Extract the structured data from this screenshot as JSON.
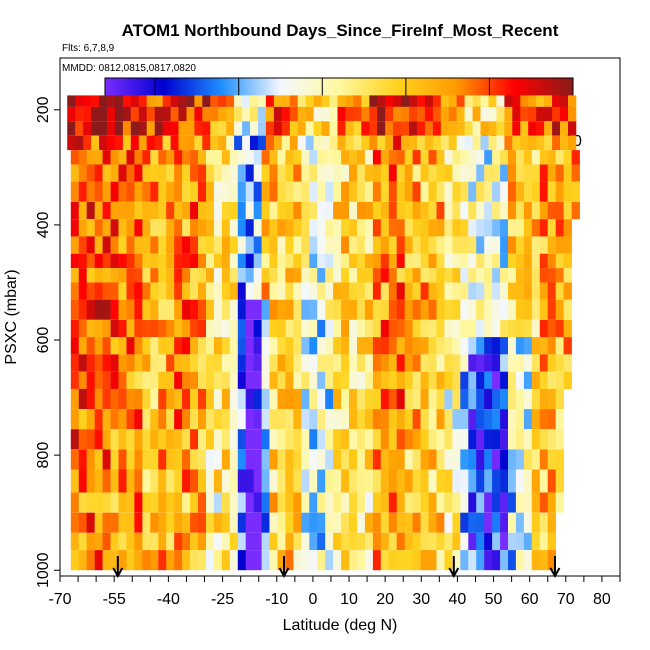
{
  "chart_data": {
    "type": "heatmap",
    "title": "ATOM1 Northbound Days_Since_FireInf_Most_Recent",
    "subtitle_flights": "Flts: 6,7,8,9",
    "subtitle_dates": "MMDD: 0812,0815,0817,0820",
    "xlabel": "Latitude (deg N)",
    "ylabel": "PSXC (mbar)",
    "xlim": [
      -70,
      85
    ],
    "ylim": [
      1010,
      110
    ],
    "x_ticks": [
      -70,
      -55,
      -40,
      -25,
      -10,
      0,
      10,
      20,
      30,
      40,
      50,
      60,
      70,
      80
    ],
    "y_ticks": [
      200,
      400,
      600,
      800,
      1000
    ],
    "colorbar": {
      "range": [
        2,
        30
      ],
      "ticks": [
        5,
        10,
        15,
        20,
        25,
        30
      ],
      "colors": [
        "#7a2cff",
        "#0000d0",
        "#1f8fff",
        "#f4f8ff",
        "#fff8a0",
        "#ffd21e",
        "#ff9a00",
        "#ff0000",
        "#8b1a1a"
      ]
    },
    "arrow_latitudes": [
      -54,
      -8,
      39,
      67
    ],
    "level_boundaries": [
      175,
      195,
      220,
      245,
      270,
      295,
      325,
      360,
      390,
      420,
      450,
      475,
      500,
      530,
      565,
      595,
      625,
      655,
      685,
      720,
      755,
      790,
      825,
      865,
      900,
      935,
      965,
      1000
    ],
    "level_profiles": [
      {
        "lon": -68,
        "loff": 13,
        "sval": [
          18,
          20
        ]
      },
      {
        "lon": -68,
        "loff": 13,
        "sval": [
          20,
          23
        ]
      },
      {
        "lon": -68,
        "loff": 13,
        "sval": [
          20,
          22
        ]
      },
      {
        "lon": -68,
        "loff": 13,
        "sval": [
          20,
          22
        ]
      },
      {
        "lon": -67,
        "loff": 13,
        "sval": [
          21,
          23
        ]
      },
      {
        "lon": -67,
        "loff": 13,
        "sval": [
          21,
          24
        ]
      },
      {
        "lon": -67,
        "loff": 13,
        "sval": [
          21,
          24
        ]
      },
      {
        "lon": -67,
        "loff": 13,
        "sval": [
          22,
          24
        ]
      },
      {
        "lon": -67,
        "loff": 15,
        "sval": [
          20,
          24
        ]
      },
      {
        "lon": -67,
        "loff": 15,
        "sval": [
          18,
          22
        ]
      },
      {
        "lon": -67,
        "loff": 15,
        "sval": [
          21,
          24
        ]
      },
      {
        "lon": -67,
        "loff": 15,
        "sval": [
          20,
          22
        ]
      },
      {
        "lon": -67,
        "loff": 15,
        "sval": [
          19,
          23
        ]
      },
      {
        "lon": -67,
        "loff": 15,
        "sval": [
          19,
          22
        ]
      },
      {
        "lon": -67,
        "loff": 15,
        "sval": [
          18,
          23
        ]
      },
      {
        "lon": -67,
        "loff": 15,
        "sval": [
          17,
          21
        ]
      },
      {
        "lon": -67,
        "loff": 15,
        "sval": [
          14,
          20
        ]
      },
      {
        "lon": -67,
        "loff": 15,
        "sval": [
          15,
          21
        ]
      },
      {
        "lon": -67,
        "loff": 16,
        "sval": [
          17,
          23
        ]
      },
      {
        "lon": -67,
        "loff": 16,
        "sval": [
          19,
          23
        ]
      },
      {
        "lon": -67,
        "loff": 16,
        "sval": [
          18,
          22
        ]
      },
      {
        "lon": -67,
        "loff": 17,
        "sval": [
          16,
          21
        ]
      },
      {
        "lon": -67,
        "loff": 17,
        "sval": [
          17,
          22
        ]
      },
      {
        "lon": -67,
        "loff": 17,
        "sval": [
          14,
          19
        ]
      },
      {
        "lon": -67,
        "loff": 18,
        "sval": [
          16,
          21
        ]
      },
      {
        "lon": -67,
        "loff": 18,
        "sval": [
          20,
          23
        ]
      },
      {
        "lon": -67,
        "loff": 18,
        "sval": [
          19,
          22
        ]
      }
    ],
    "latitude_bands": [
      {
        "lat": [
          -68,
          -58
        ],
        "v": 25
      },
      {
        "lat": [
          -58,
          -48
        ],
        "v": 24
      },
      {
        "lat": [
          -48,
          -40
        ],
        "v": 22
      },
      {
        "lat": [
          -40,
          -30
        ],
        "v": 23
      },
      {
        "lat": [
          -30,
          -22
        ],
        "v": 18
      },
      {
        "lat": [
          -22,
          -15
        ],
        "v": 10
      },
      {
        "lat": [
          -15,
          -5
        ],
        "v": 20
      },
      {
        "lat": [
          -5,
          5
        ],
        "v": 14
      },
      {
        "lat": [
          5,
          15
        ],
        "v": 19
      },
      {
        "lat": [
          15,
          25
        ],
        "v": 23
      },
      {
        "lat": [
          25,
          35
        ],
        "v": 21
      },
      {
        "lat": [
          35,
          42
        ],
        "v": 17
      },
      {
        "lat": [
          42,
          52
        ],
        "v": 14
      },
      {
        "lat": [
          52,
          62
        ],
        "v": 20
      },
      {
        "lat": [
          62,
          72
        ],
        "v": 22
      },
      {
        "lat": [
          72,
          80
        ],
        "v": 18
      }
    ]
  }
}
